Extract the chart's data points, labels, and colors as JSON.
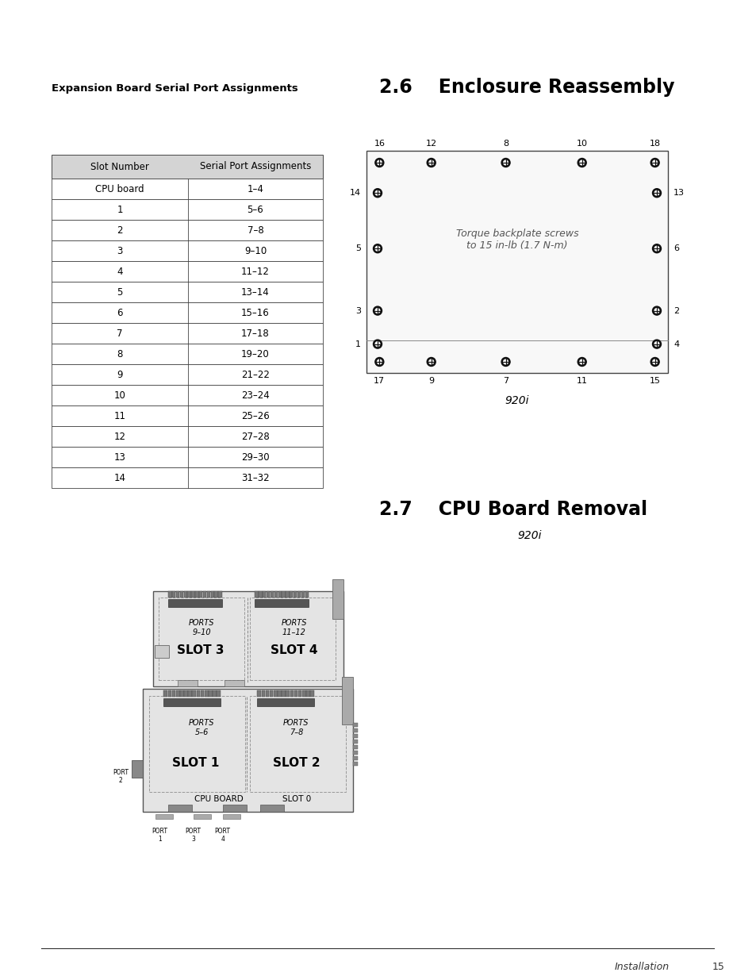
{
  "bg_color": "#ffffff",
  "left_header": "Expansion Board Serial Port Assignments",
  "right_header": "2.6    Enclosure Reassembly",
  "section27_title": "2.7    CPU Board Removal",
  "section27_subtitle": "920i",
  "table_header": [
    "Slot Number",
    "Serial Port Assignments"
  ],
  "table_rows": [
    [
      "CPU board",
      "1–4"
    ],
    [
      "1",
      "5–6"
    ],
    [
      "2",
      "7–8"
    ],
    [
      "3",
      "9–10"
    ],
    [
      "4",
      "11–12"
    ],
    [
      "5",
      "13–14"
    ],
    [
      "6",
      "15–16"
    ],
    [
      "7",
      "17–18"
    ],
    [
      "8",
      "19–20"
    ],
    [
      "9",
      "21–22"
    ],
    [
      "10",
      "23–24"
    ],
    [
      "11",
      "25–26"
    ],
    [
      "12",
      "27–28"
    ],
    [
      "13",
      "29–30"
    ],
    [
      "14",
      "31–32"
    ]
  ],
  "diagram_label": "920i",
  "torque_text": "Torque backplate screws\nto 15 in-lb (1.7 N-m)",
  "top_screw_labels": [
    "16",
    "12",
    "8",
    "10",
    "18"
  ],
  "bottom_screw_labels": [
    "17",
    "9",
    "7",
    "11",
    "15"
  ],
  "left_screw_labels": [
    "14",
    "5",
    "3",
    "1"
  ],
  "right_screw_labels": [
    "13",
    "6",
    "2",
    "4"
  ],
  "footer_text": "Installation",
  "page_number": "15"
}
